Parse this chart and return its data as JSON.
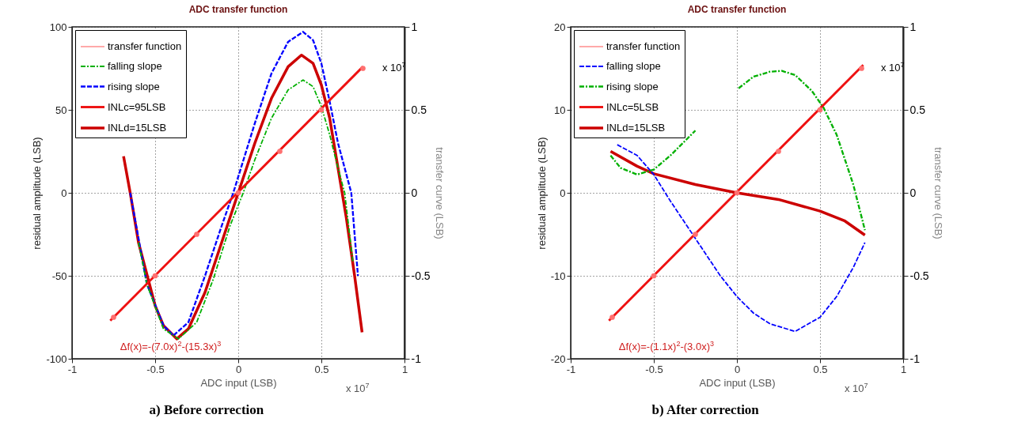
{
  "chart_data": [
    {
      "type": "line",
      "title": "ADC transfer function",
      "xlabel": "ADC input (LSB)",
      "ylabel": "residual amplitude (LSB)",
      "y2label": "transfer curve (LSB)",
      "annotations": [
        "Δf(x)=-(7.0x)$^{2}$-(15.3x)$^{3}$",
        "x 10$^{7}$",
        "x 10$^{7}$",
        "a) Before correction"
      ],
      "xlim": [
        -1,
        1
      ],
      "xticks": [
        -1,
        -0.5,
        0,
        0.5,
        1
      ],
      "ylim": [
        -100,
        100
      ],
      "yticks": [
        -100,
        -50,
        0,
        50,
        100
      ],
      "y2lim": [
        -1,
        1
      ],
      "y2ticks": [
        -1,
        -0.5,
        0,
        0.5,
        1
      ],
      "grid": true,
      "legend": "top left",
      "series": [
        {
          "name": "transfer function",
          "type": "scatter",
          "axis": "y2",
          "color": "#ff7070",
          "x": [
            -0.75,
            -0.5,
            -0.25,
            0,
            0.25,
            0.5,
            0.75
          ],
          "values": [
            -0.75,
            -0.5,
            -0.25,
            0,
            0.25,
            0.5,
            0.75
          ]
        },
        {
          "name": "falling slope",
          "line_style": "dashdot",
          "color": "#00b000",
          "x": [
            -0.6,
            -0.55,
            -0.45,
            -0.36,
            -0.25,
            -0.15,
            -0.05,
            0.03,
            0.1,
            0.2,
            0.3,
            0.39,
            0.45,
            0.5,
            0.55,
            0.6,
            0.64,
            0.69
          ],
          "values": [
            -30,
            -55,
            -82,
            -88,
            -78,
            -52,
            -20,
            0,
            20,
            45,
            62,
            68,
            64,
            52,
            35,
            15,
            0,
            -42
          ]
        },
        {
          "name": "rising slope",
          "line_style": "dashed",
          "color": "#0000ff",
          "x": [
            -0.65,
            -0.55,
            -0.45,
            -0.39,
            -0.3,
            -0.2,
            -0.1,
            -0.03,
            0.1,
            0.2,
            0.3,
            0.39,
            0.45,
            0.5,
            0.55,
            0.6,
            0.68,
            0.72
          ],
          "values": [
            0,
            -55,
            -80,
            -86,
            -78,
            -50,
            -20,
            0,
            42,
            72,
            91,
            97,
            92,
            78,
            55,
            30,
            0,
            -50
          ]
        },
        {
          "name": "INLc=95LSB",
          "line_style": "solid",
          "axis": "y2",
          "color": "#ee1111",
          "x": [
            -0.77,
            0.75
          ],
          "values": [
            -0.77,
            0.76
          ]
        },
        {
          "name": "INLd=15LSB",
          "line_style": "solid",
          "color": "#cc0000",
          "x": [
            -0.69,
            -0.65,
            -0.6,
            -0.5,
            -0.45,
            -0.37,
            -0.3,
            -0.2,
            -0.1,
            0,
            0.1,
            0.2,
            0.3,
            0.38,
            0.45,
            0.5,
            0.55,
            0.6,
            0.65,
            0.7,
            0.745
          ],
          "values": [
            22,
            0,
            -30,
            -68,
            -80,
            -88,
            -82,
            -60,
            -30,
            0,
            30,
            57,
            76,
            83,
            78,
            65,
            45,
            15,
            -15,
            -50,
            -84
          ]
        }
      ]
    },
    {
      "type": "line",
      "title": "ADC transfer function",
      "xlabel": "ADC input (LSB)",
      "ylabel": "residual amplitude (LSB)",
      "y2label": "transfer curve (LSB)",
      "annotations": [
        "Δf(x)=-(1.1x)$^{2}$-(3.0x)$^{3}$",
        "x 10$^{7}$",
        "x 10$^{7}$",
        "b) After correction"
      ],
      "xlim": [
        -1,
        1
      ],
      "xticks": [
        -1,
        -0.5,
        0,
        0.5,
        1
      ],
      "ylim": [
        -20,
        20
      ],
      "yticks": [
        -20,
        -10,
        0,
        10,
        20
      ],
      "y2lim": [
        -1,
        1
      ],
      "y2ticks": [
        -1,
        -0.5,
        0,
        0.5,
        1
      ],
      "grid": true,
      "legend": "top left",
      "series": [
        {
          "name": "transfer function",
          "type": "scatter",
          "axis": "y2",
          "color": "#ff7070",
          "x": [
            -0.75,
            -0.5,
            -0.25,
            0,
            0.25,
            0.5,
            0.75
          ],
          "values": [
            -0.75,
            -0.5,
            -0.25,
            0,
            0.25,
            0.5,
            0.75
          ]
        },
        {
          "name": "falling slope",
          "line_style": "dashed",
          "color": "#0000ff",
          "x": [
            -0.72,
            -0.6,
            -0.5,
            -0.4,
            -0.25,
            -0.1,
            0,
            0.1,
            0.2,
            0.35,
            0.5,
            0.6,
            0.7,
            0.77
          ],
          "values": [
            5.8,
            4.5,
            2.2,
            -1,
            -5.5,
            -10,
            -12.5,
            -14.5,
            -15.8,
            -16.7,
            -15,
            -12.5,
            -9,
            -6
          ]
        },
        {
          "name": "rising slope",
          "line_style": "dashdot",
          "color": "#00b000",
          "x": [
            -0.76,
            -0.7,
            -0.6,
            -0.5,
            -0.4,
            -0.3,
            -0.25,
            -0.12,
            0.01,
            0.1,
            0.2,
            0.27,
            0.35,
            0.45,
            0.52,
            0.6,
            0.7,
            0.77
          ],
          "values": [
            4.5,
            3,
            2.2,
            2.8,
            4.5,
            6.5,
            7.5,
            null,
            12.6,
            14,
            14.6,
            14.7,
            14.2,
            12.3,
            10.3,
            7,
            1,
            -4.5
          ]
        },
        {
          "name": "INLc=5LSB",
          "line_style": "solid",
          "axis": "y2",
          "color": "#ee1111",
          "x": [
            -0.77,
            0.76
          ],
          "values": [
            -0.77,
            0.77
          ]
        },
        {
          "name": "INLd=15LSB",
          "line_style": "solid",
          "color": "#cc0000",
          "x": [
            -0.76,
            -0.6,
            -0.5,
            -0.25,
            0,
            0.25,
            0.5,
            0.65,
            0.77
          ],
          "values": [
            5,
            3.2,
            2.3,
            1,
            0,
            -0.8,
            -2.2,
            -3.4,
            -5.1
          ]
        }
      ]
    }
  ]
}
